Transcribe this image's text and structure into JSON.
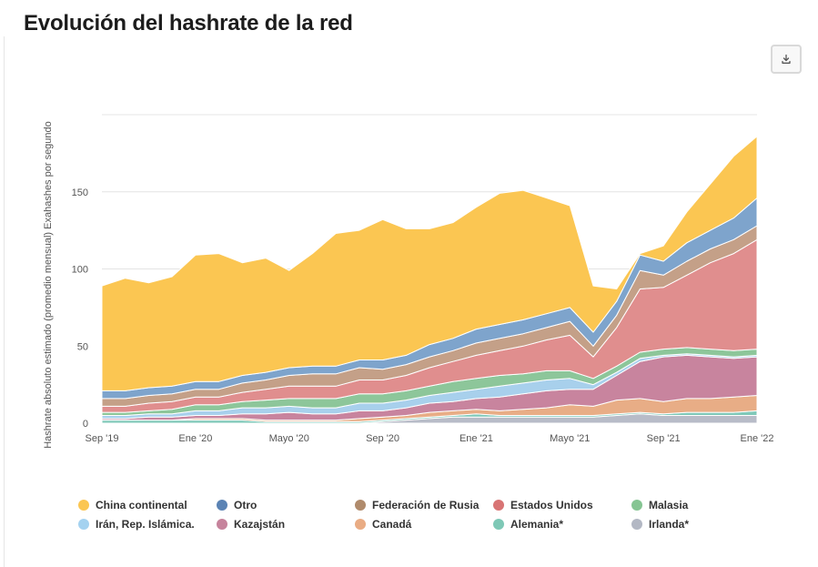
{
  "page": {
    "title": "Evolución del hashrate de la red"
  },
  "toolbar": {
    "download_icon": "download-icon"
  },
  "chart_data": {
    "type": "area",
    "stacked": true,
    "ylabel": "Hashrate absoluto estimado (promedio mensual) Exahashes por segundo",
    "ylim": [
      0,
      200
    ],
    "yticks": [
      0,
      50,
      100,
      150
    ],
    "x_ticks": [
      {
        "index": 0,
        "label": "Sep '19"
      },
      {
        "index": 4,
        "label": "Ene '20"
      },
      {
        "index": 8,
        "label": "Mayo '20"
      },
      {
        "index": 12,
        "label": "Sep '20"
      },
      {
        "index": 16,
        "label": "Ene '21"
      },
      {
        "index": 20,
        "label": "Mayo '21"
      },
      {
        "index": 24,
        "label": "Sep '21"
      },
      {
        "index": 28,
        "label": "Ene '22"
      }
    ],
    "x": [
      "2019-09",
      "2019-10",
      "2019-11",
      "2019-12",
      "2020-01",
      "2020-02",
      "2020-03",
      "2020-04",
      "2020-05",
      "2020-06",
      "2020-07",
      "2020-08",
      "2020-09",
      "2020-10",
      "2020-11",
      "2020-12",
      "2021-01",
      "2021-02",
      "2021-03",
      "2021-04",
      "2021-05",
      "2021-06",
      "2021-07",
      "2021-08",
      "2021-09",
      "2021-10",
      "2021-11",
      "2021-12",
      "2022-01"
    ],
    "series": [
      {
        "name": "Irlanda*",
        "color": "#b8bcc8",
        "values": [
          0,
          0,
          0,
          0,
          0,
          0,
          0,
          0,
          0,
          0,
          0,
          0,
          1,
          2,
          3,
          4,
          4,
          4,
          4,
          4,
          4,
          4,
          5,
          6,
          5,
          5,
          5,
          5,
          5
        ]
      },
      {
        "name": "Alemania*",
        "color": "#7fc8b8",
        "values": [
          2,
          2,
          2,
          2,
          2,
          2,
          2,
          1,
          1,
          1,
          1,
          1,
          1,
          1,
          1,
          1,
          2,
          1,
          1,
          1,
          1,
          1,
          1,
          1,
          1,
          2,
          2,
          2,
          3
        ]
      },
      {
        "name": "Canadá",
        "color": "#e8ad86",
        "values": [
          0,
          0,
          0,
          0,
          1,
          1,
          1,
          1,
          1,
          1,
          1,
          2,
          2,
          2,
          3,
          3,
          3,
          3,
          4,
          5,
          7,
          6,
          9,
          9,
          8,
          9,
          9,
          10,
          10
        ]
      },
      {
        "name": "Kazajstán",
        "color": "#c8849e",
        "values": [
          1,
          1,
          2,
          2,
          2,
          2,
          3,
          4,
          5,
          4,
          4,
          5,
          4,
          5,
          6,
          6,
          7,
          9,
          10,
          11,
          10,
          11,
          16,
          24,
          29,
          28,
          27,
          25,
          25
        ]
      },
      {
        "name": "Irán, Rep. Islámica.",
        "color": "#a8d0ec",
        "values": [
          2,
          2,
          2,
          2,
          3,
          3,
          4,
          4,
          4,
          4,
          4,
          5,
          5,
          5,
          5,
          6,
          6,
          7,
          7,
          7,
          7,
          3,
          2,
          2,
          1,
          1,
          1,
          1,
          1
        ]
      },
      {
        "name": "Malasia",
        "color": "#8dc69a",
        "values": [
          2,
          2,
          2,
          3,
          4,
          4,
          4,
          5,
          5,
          6,
          6,
          6,
          6,
          6,
          6,
          7,
          7,
          7,
          6,
          6,
          5,
          4,
          4,
          4,
          4,
          4,
          4,
          4,
          4
        ]
      },
      {
        "name": "Estados Unidos",
        "color": "#e08e8e",
        "values": [
          4,
          4,
          5,
          5,
          5,
          5,
          6,
          7,
          8,
          8,
          8,
          9,
          9,
          10,
          12,
          13,
          15,
          16,
          18,
          20,
          23,
          14,
          25,
          41,
          40,
          47,
          56,
          63,
          71
        ]
      },
      {
        "name": "Federación de Rusia",
        "color": "#c4a088",
        "values": [
          5,
          5,
          5,
          5,
          5,
          5,
          6,
          6,
          7,
          8,
          8,
          8,
          7,
          7,
          7,
          7,
          8,
          8,
          8,
          8,
          9,
          7,
          8,
          12,
          8,
          9,
          9,
          9,
          9
        ]
      },
      {
        "name": "Otro",
        "color": "#7ea4cc",
        "values": [
          5,
          5,
          5,
          5,
          5,
          5,
          5,
          5,
          5,
          5,
          5,
          5,
          6,
          6,
          8,
          8,
          9,
          9,
          9,
          9,
          9,
          9,
          9,
          10,
          9,
          12,
          12,
          14,
          18
        ]
      },
      {
        "name": "China continental",
        "color": "#fbc652",
        "values": [
          68,
          73,
          68,
          71,
          82,
          83,
          73,
          74,
          63,
          73,
          86,
          84,
          91,
          82,
          75,
          75,
          79,
          85,
          84,
          75,
          66,
          30,
          8,
          1,
          10,
          20,
          30,
          40,
          40
        ]
      }
    ],
    "legend": [
      {
        "name": "China continental",
        "color": "#fbc652"
      },
      {
        "name": "Otro",
        "color": "#5b83b4"
      },
      {
        "name": "Federación de Rusia",
        "color": "#b08b6c"
      },
      {
        "name": "Estados Unidos",
        "color": "#d87474"
      },
      {
        "name": "Malasia",
        "color": "#86c593"
      },
      {
        "name": "Irán, Rep. Islámica.",
        "color": "#a4d2f0"
      },
      {
        "name": "Kazajstán",
        "color": "#c6839c"
      },
      {
        "name": "Canadá",
        "color": "#e9ac84"
      },
      {
        "name": "Alemania*",
        "color": "#7ec8b6"
      },
      {
        "name": "Irlanda*",
        "color": "#b3b8c4"
      }
    ]
  }
}
